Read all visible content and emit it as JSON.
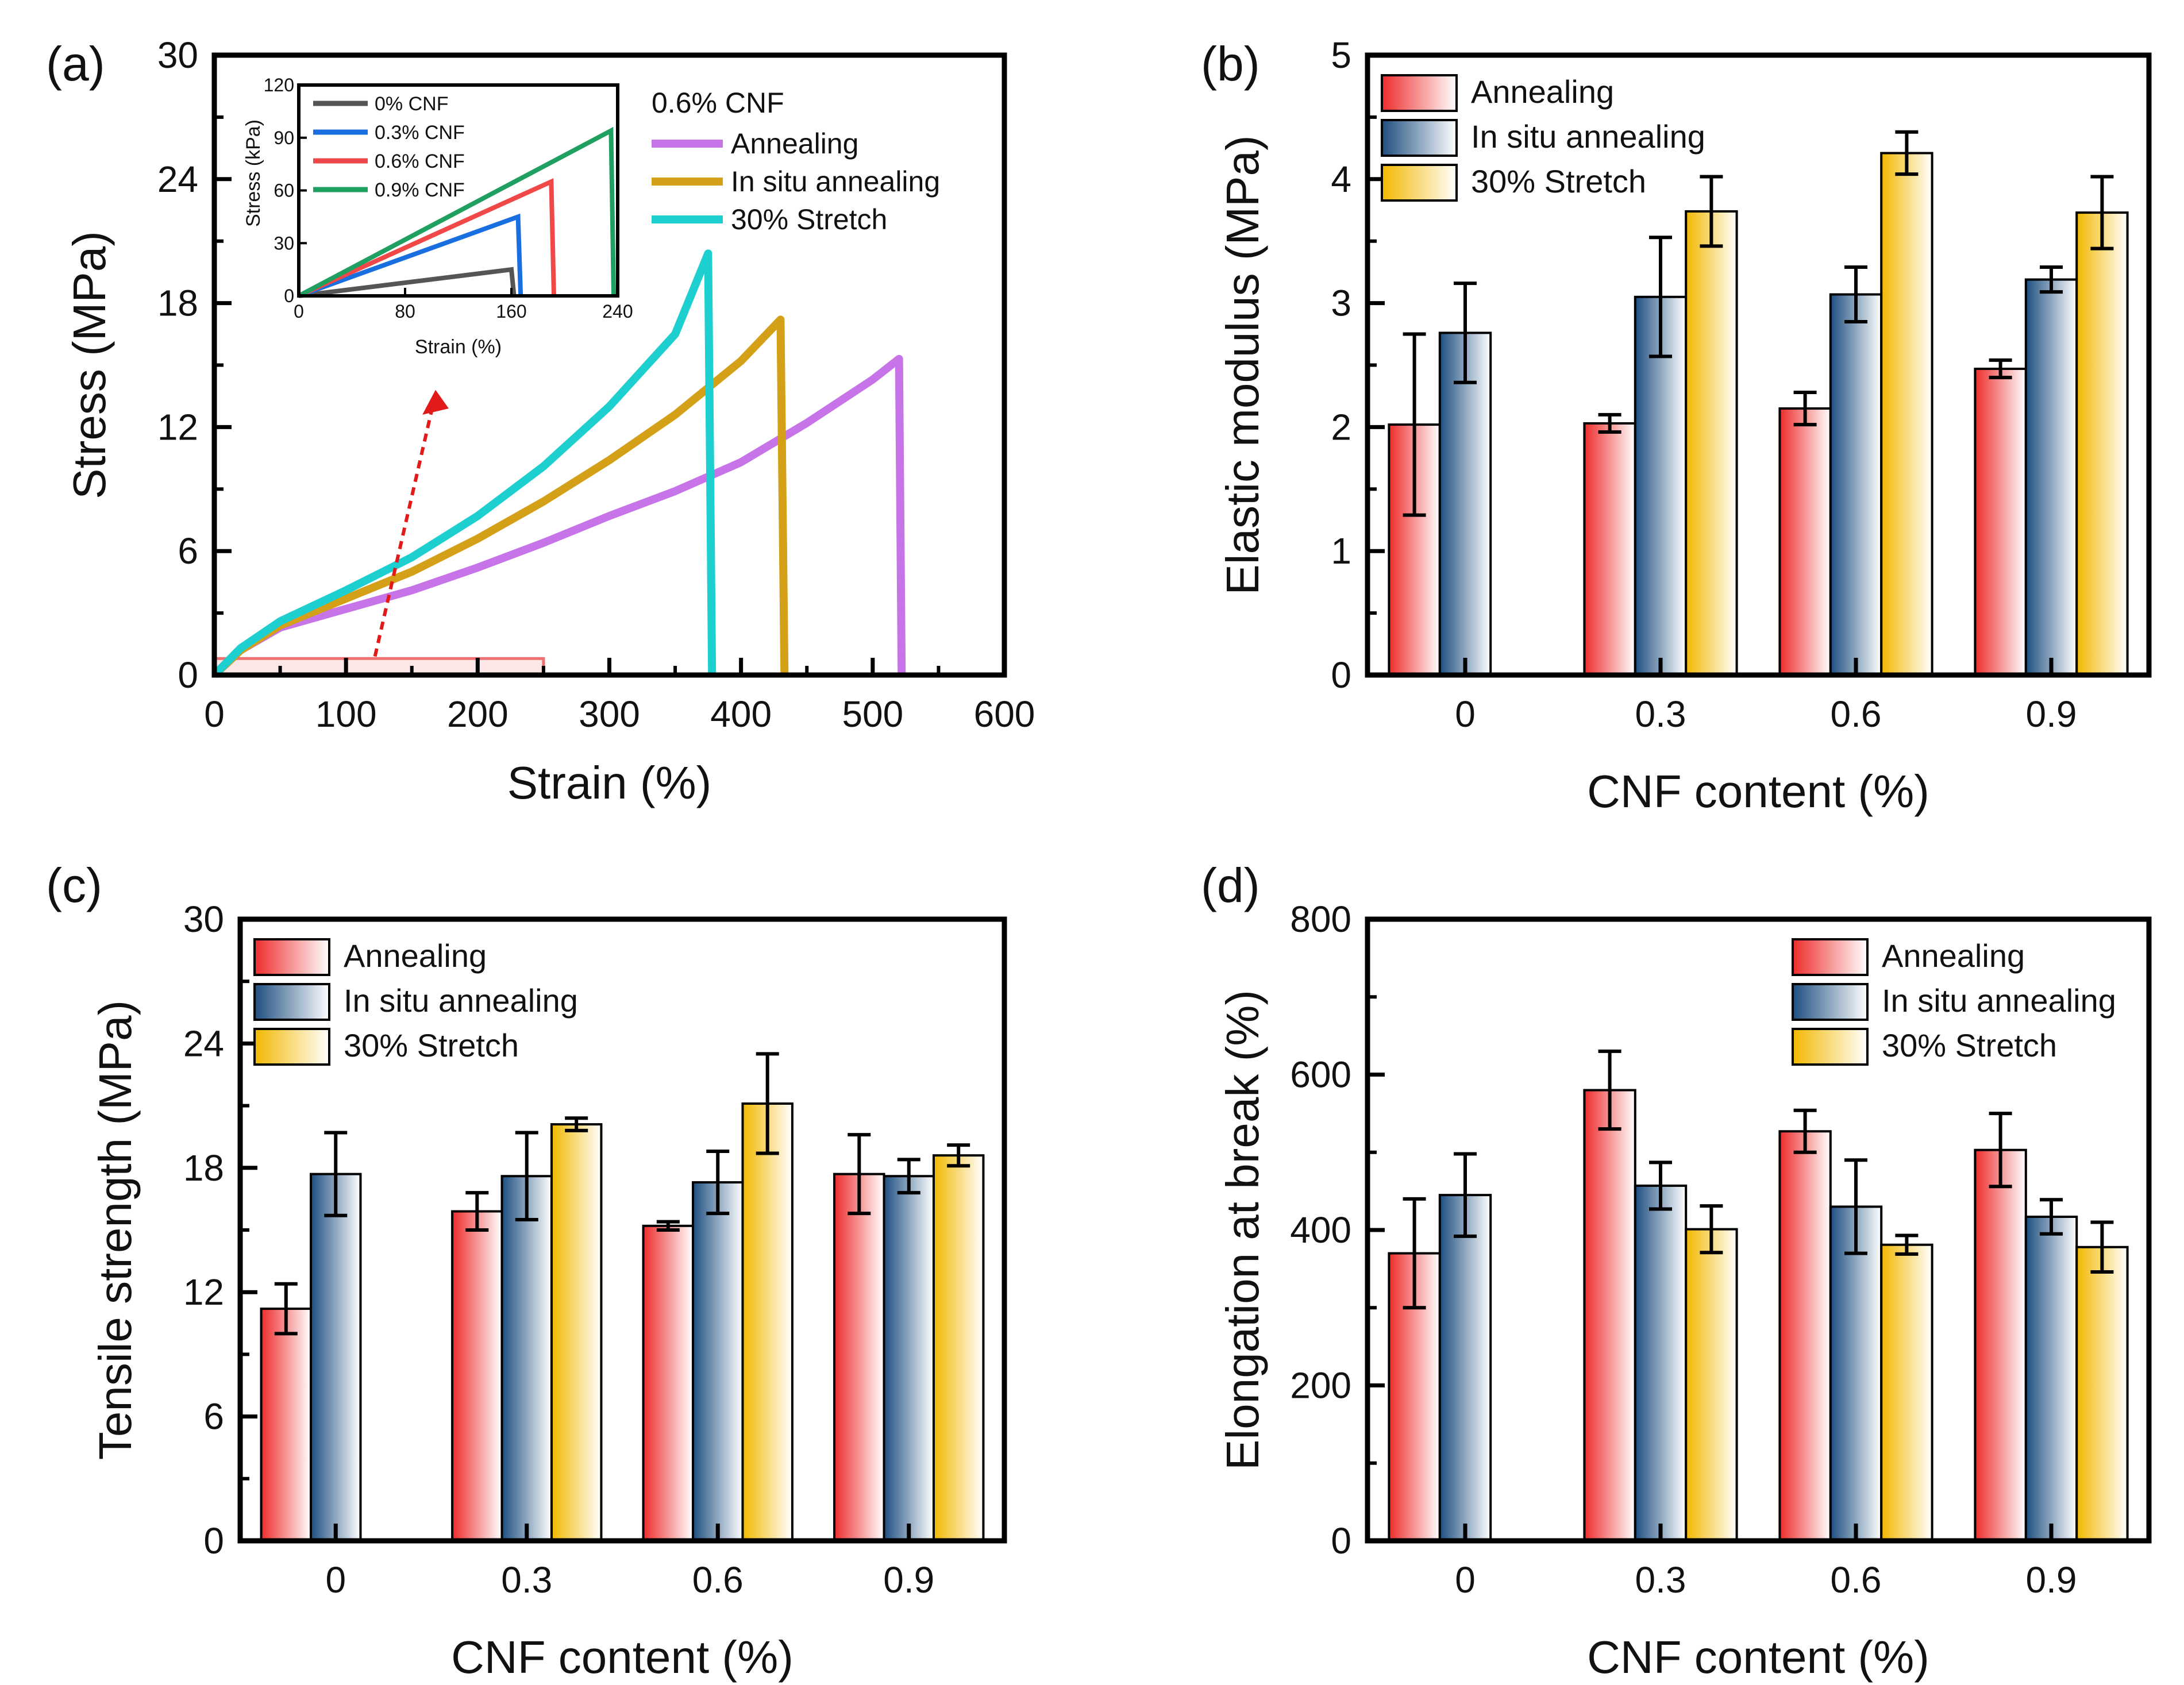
{
  "chart_data": [
    {
      "panel": "(a)",
      "type": "line",
      "xlabel": "Strain (%)",
      "ylabel": "Stress (MPa)",
      "xlim": [
        0,
        600
      ],
      "ylim": [
        0,
        30
      ],
      "xticks": [
        "0",
        "100",
        "200",
        "300",
        "400",
        "500",
        "600"
      ],
      "yticks": [
        "0",
        "6",
        "12",
        "18",
        "24",
        "30"
      ],
      "legend_title": "0.6% CNF",
      "series": [
        {
          "name": "Annealing",
          "color": "#c774e8",
          "x": [
            0,
            20,
            50,
            100,
            150,
            200,
            250,
            300,
            350,
            400,
            450,
            500,
            520,
            522
          ],
          "y": [
            0,
            1.2,
            2.3,
            3.2,
            4.1,
            5.2,
            6.4,
            7.7,
            8.9,
            10.3,
            12.2,
            14.3,
            15.3,
            0
          ]
        },
        {
          "name": "In situ annealing",
          "color": "#d4a017",
          "x": [
            0,
            20,
            50,
            100,
            150,
            200,
            250,
            300,
            350,
            400,
            430,
            433
          ],
          "y": [
            0,
            1.2,
            2.4,
            3.7,
            5.0,
            6.6,
            8.4,
            10.4,
            12.6,
            15.2,
            17.2,
            0
          ]
        },
        {
          "name": "30% Stretch",
          "color": "#1dcfcf",
          "x": [
            0,
            20,
            50,
            100,
            150,
            200,
            250,
            300,
            350,
            375,
            378
          ],
          "y": [
            0,
            1.3,
            2.6,
            4.1,
            5.7,
            7.7,
            10.1,
            13.0,
            16.5,
            20.4,
            0
          ]
        }
      ],
      "inset": {
        "xlabel": "Strain (%)",
        "ylabel": "Stress (kPa)",
        "xlim": [
          0,
          240
        ],
        "ylim": [
          0,
          120
        ],
        "xticks": [
          "0",
          "80",
          "160",
          "240"
        ],
        "yticks": [
          "0",
          "30",
          "60",
          "90",
          "120"
        ],
        "series": [
          {
            "name": "0% CNF",
            "color": "#555555",
            "x": [
              0,
              160,
              162
            ],
            "y": [
              0,
              15,
              0
            ]
          },
          {
            "name": "0.3% CNF",
            "color": "#1a6fe0",
            "x": [
              0,
              165,
              167
            ],
            "y": [
              0,
              45,
              0
            ]
          },
          {
            "name": "0.6% CNF",
            "color": "#f04848",
            "x": [
              0,
              190,
              192
            ],
            "y": [
              0,
              65,
              0
            ]
          },
          {
            "name": "0.9% CNF",
            "color": "#20a060",
            "x": [
              0,
              235,
              237
            ],
            "y": [
              0,
              94,
              0
            ]
          }
        ]
      }
    },
    {
      "panel": "(b)",
      "type": "bar",
      "xlabel": "CNF content (%)",
      "ylabel": "Elastic modulus (MPa)",
      "categories": [
        "0",
        "0.3",
        "0.6",
        "0.9"
      ],
      "ylim": [
        0,
        5
      ],
      "yticks": [
        "0",
        "1",
        "2",
        "3",
        "4",
        "5"
      ],
      "legend_position": "top-left",
      "series": [
        {
          "name": "Annealing",
          "color": "#ee2c2c",
          "values": [
            2.02,
            2.03,
            2.15,
            2.47
          ],
          "errors": [
            0.73,
            0.07,
            0.13,
            0.07
          ]
        },
        {
          "name": "In situ annealing",
          "color": "#1e4f80",
          "values": [
            2.76,
            3.05,
            3.07,
            3.19
          ],
          "errors": [
            0.4,
            0.48,
            0.22,
            0.1
          ]
        },
        {
          "name": "30% Stretch",
          "color": "#f2b800",
          "values": [
            null,
            3.74,
            4.21,
            3.73
          ],
          "errors": [
            null,
            0.28,
            0.17,
            0.29
          ]
        }
      ]
    },
    {
      "panel": "(c)",
      "type": "bar",
      "xlabel": "CNF content (%)",
      "ylabel": "Tensile strength (MPa)",
      "categories": [
        "0",
        "0.3",
        "0.6",
        "0.9"
      ],
      "ylim": [
        0,
        30
      ],
      "yticks": [
        "0",
        "6",
        "12",
        "18",
        "24",
        "30"
      ],
      "legend_position": "top-left",
      "series": [
        {
          "name": "Annealing",
          "color": "#ee2c2c",
          "values": [
            11.2,
            15.9,
            15.2,
            17.7
          ],
          "errors": [
            1.2,
            0.9,
            0.2,
            1.9
          ]
        },
        {
          "name": "In situ annealing",
          "color": "#1e4f80",
          "values": [
            17.7,
            17.6,
            17.3,
            17.6
          ],
          "errors": [
            2.0,
            2.1,
            1.5,
            0.8
          ]
        },
        {
          "name": "30% Stretch",
          "color": "#f2b800",
          "values": [
            null,
            20.1,
            21.1,
            18.6
          ],
          "errors": [
            null,
            0.3,
            2.4,
            0.5
          ]
        }
      ]
    },
    {
      "panel": "(d)",
      "type": "bar",
      "xlabel": "CNF content (%)",
      "ylabel": "Elongation at break (%)",
      "categories": [
        "0",
        "0.3",
        "0.6",
        "0.9"
      ],
      "ylim": [
        0,
        800
      ],
      "yticks": [
        "0",
        "200",
        "400",
        "600",
        "800"
      ],
      "legend_position": "top-right",
      "series": [
        {
          "name": "Annealing",
          "color": "#ee2c2c",
          "values": [
            370,
            580,
            527,
            503
          ],
          "errors": [
            70,
            50,
            27,
            47
          ]
        },
        {
          "name": "In situ annealing",
          "color": "#1e4f80",
          "values": [
            445,
            457,
            430,
            417
          ],
          "errors": [
            53,
            30,
            60,
            22
          ]
        },
        {
          "name": "30% Stretch",
          "color": "#f2b800",
          "values": [
            null,
            401,
            381,
            378
          ],
          "errors": [
            null,
            30,
            12,
            32
          ]
        }
      ]
    }
  ]
}
